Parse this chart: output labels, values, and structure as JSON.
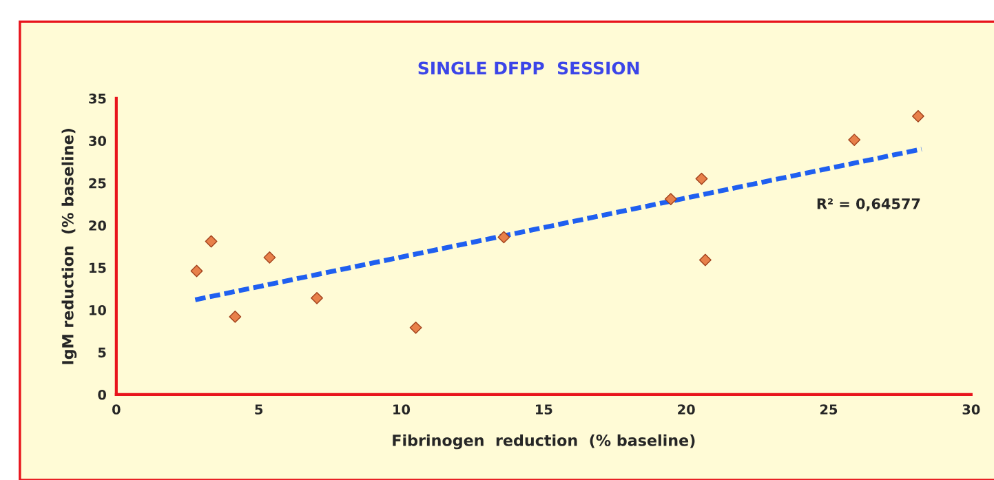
{
  "chart_data": {
    "type": "scatter",
    "title": "SINGLE DFPP  SESSION",
    "xlabel": "Fibrinogen  reduction  (% baseline)",
    "ylabel": "IgM reduction  (% baseline)",
    "series": [
      {
        "color": "#e8804a",
        "marker": "diamond",
        "x": [
          2.82,
          3.33,
          4.17,
          5.38,
          7.04,
          10.51,
          13.6,
          19.46,
          20.54,
          20.67,
          25.9,
          28.14
        ],
        "values": [
          14.6,
          18.1,
          9.2,
          16.2,
          11.4,
          7.9,
          18.6,
          23.1,
          25.5,
          15.9,
          30.1,
          32.9
        ]
      },
      {
        "type": "line",
        "color": "#1f5ff0",
        "line_style": "dashed",
        "marker": "none",
        "x": [
          2.77,
          28.26
        ],
        "values": [
          11.2,
          29.0
        ]
      }
    ],
    "annotations": [
      "R² = 0,64577"
    ],
    "xlim": [
      0,
      30
    ],
    "xticks": [
      0,
      5,
      10,
      15,
      20,
      25,
      30
    ],
    "ylim": [
      0,
      35
    ],
    "yticks": [
      0,
      5,
      10,
      15,
      20,
      25,
      30,
      35
    ],
    "grid": false,
    "legend": false
  }
}
